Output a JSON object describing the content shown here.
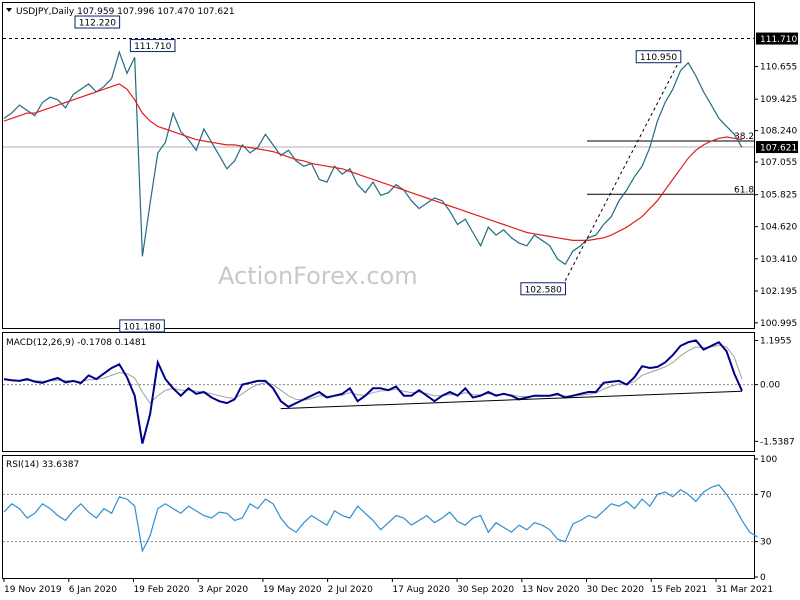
{
  "chart_data": {
    "type": "line",
    "symbol": "USDJPY",
    "timeframe": "Daily",
    "title_line": "USDJPY,Daily  107.959 107.996 107.470 107.621",
    "ohlc": {
      "open": 107.959,
      "high": 107.996,
      "low": 107.47,
      "close": 107.621
    },
    "watermark": "ActionForex.com",
    "x_ticks": [
      "19 Nov 2019",
      "6 Jan 2020",
      "19 Feb 2020",
      "3 Apr 2020",
      "19 May 2020",
      "2 Jul 2020",
      "17 Aug 2020",
      "30 Sep 2020",
      "13 Nov 2020",
      "30 Dec 2020",
      "15 Feb 2021",
      "31 Mar 2021"
    ],
    "colors": {
      "price": "#1f6b82",
      "ma": "#e02020",
      "macd": "#00008b",
      "signal": "#a0a0a0",
      "rsi": "#2e8fd0",
      "accent": "#0a246a"
    },
    "price_panel": {
      "y_ticks": [
        110.655,
        109.425,
        108.24,
        107.055,
        105.825,
        104.62,
        103.41,
        102.195,
        100.995
      ],
      "ylim": [
        100.8,
        113.05
      ],
      "current_price": 107.621,
      "resistance_level": 111.71,
      "annotations": [
        {
          "label": "112.220",
          "value": 112.22,
          "index": 15
        },
        {
          "label": "111.710",
          "value": 111.71,
          "index": 17
        },
        {
          "label": "101.180",
          "value": 101.18,
          "index": 19
        },
        {
          "label": "110.950",
          "value": 110.95,
          "index": 88
        },
        {
          "label": "102.580",
          "value": 102.58,
          "index": 73
        }
      ],
      "fib_levels": [
        {
          "label": "38.2",
          "value": 107.85
        },
        {
          "label": "61.8",
          "value": 105.84
        }
      ],
      "series": [
        {
          "name": "Close",
          "values": [
            108.7,
            108.9,
            109.2,
            109.0,
            108.8,
            109.3,
            109.5,
            109.4,
            109.1,
            109.6,
            109.8,
            110.0,
            109.7,
            109.9,
            110.2,
            111.2,
            110.4,
            111.0,
            103.5,
            105.5,
            107.4,
            107.8,
            108.9,
            108.2,
            107.9,
            107.5,
            108.3,
            107.8,
            107.3,
            106.8,
            107.1,
            107.7,
            107.4,
            107.6,
            108.1,
            107.7,
            107.3,
            107.5,
            107.1,
            106.9,
            107.0,
            106.4,
            106.3,
            106.9,
            106.6,
            106.8,
            106.2,
            105.9,
            106.3,
            105.8,
            105.9,
            106.2,
            106.0,
            105.6,
            105.3,
            105.5,
            105.7,
            105.6,
            105.2,
            104.7,
            104.9,
            104.4,
            103.9,
            104.6,
            104.3,
            104.5,
            104.2,
            104.0,
            103.9,
            104.3,
            104.1,
            103.9,
            103.4,
            103.2,
            103.7,
            103.9,
            104.2,
            104.3,
            104.7,
            105.0,
            105.6,
            106.0,
            106.5,
            106.9,
            107.6,
            108.6,
            109.3,
            109.8,
            110.5,
            110.8,
            110.3,
            109.7,
            109.2,
            108.7,
            108.4,
            108.1,
            107.6
          ]
        },
        {
          "name": "MA",
          "values": [
            108.6,
            108.7,
            108.8,
            108.9,
            108.9,
            109.0,
            109.1,
            109.2,
            109.3,
            109.4,
            109.5,
            109.6,
            109.7,
            109.8,
            109.9,
            110.0,
            109.8,
            109.4,
            108.9,
            108.6,
            108.4,
            108.3,
            108.2,
            108.1,
            108.0,
            107.9,
            107.85,
            107.8,
            107.75,
            107.7,
            107.7,
            107.65,
            107.6,
            107.55,
            107.5,
            107.45,
            107.35,
            107.25,
            107.15,
            107.1,
            107.0,
            106.95,
            106.9,
            106.85,
            106.8,
            106.7,
            106.6,
            106.5,
            106.4,
            106.3,
            106.2,
            106.1,
            106.0,
            105.9,
            105.8,
            105.7,
            105.6,
            105.5,
            105.4,
            105.3,
            105.2,
            105.1,
            105.0,
            104.9,
            104.8,
            104.7,
            104.6,
            104.5,
            104.4,
            104.35,
            104.3,
            104.25,
            104.2,
            104.15,
            104.1,
            104.1,
            104.1,
            104.15,
            104.2,
            104.3,
            104.45,
            104.6,
            104.8,
            105.0,
            105.3,
            105.6,
            106.0,
            106.4,
            106.8,
            107.2,
            107.5,
            107.7,
            107.85,
            107.95,
            108.0,
            107.95,
            107.9
          ]
        }
      ]
    },
    "macd_panel": {
      "label": "MACD(12,26,9) -0.1708 0.1481",
      "y_ticks": [
        "1.1955",
        "0.00",
        "-1.5387"
      ],
      "ylim": [
        -1.8,
        1.4
      ],
      "zero_level": 0.0,
      "trendline": [
        {
          "index": 36,
          "value": -0.65
        },
        {
          "index": 96,
          "value": -0.18
        }
      ],
      "series": [
        {
          "name": "MACD",
          "values": [
            0.15,
            0.12,
            0.1,
            0.15,
            0.08,
            0.05,
            0.12,
            0.18,
            0.06,
            0.1,
            0.04,
            0.25,
            0.15,
            0.3,
            0.45,
            0.55,
            0.2,
            -0.3,
            -1.6,
            -0.8,
            0.6,
            0.15,
            -0.1,
            -0.3,
            -0.1,
            -0.25,
            -0.2,
            -0.35,
            -0.45,
            -0.5,
            -0.4,
            0.0,
            0.05,
            0.1,
            0.1,
            -0.1,
            -0.45,
            -0.6,
            -0.5,
            -0.4,
            -0.3,
            -0.2,
            -0.35,
            -0.3,
            -0.25,
            -0.1,
            -0.45,
            -0.3,
            -0.1,
            -0.1,
            -0.15,
            -0.05,
            -0.3,
            -0.3,
            -0.15,
            -0.3,
            -0.45,
            -0.3,
            -0.2,
            -0.3,
            -0.1,
            -0.35,
            -0.3,
            -0.2,
            -0.3,
            -0.25,
            -0.3,
            -0.4,
            -0.35,
            -0.3,
            -0.3,
            -0.3,
            -0.25,
            -0.35,
            -0.3,
            -0.25,
            -0.2,
            -0.2,
            0.05,
            0.08,
            0.1,
            0.0,
            0.2,
            0.5,
            0.45,
            0.48,
            0.6,
            0.8,
            1.05,
            1.15,
            1.2,
            0.95,
            1.05,
            1.15,
            0.9,
            0.3,
            -0.17
          ]
        },
        {
          "name": "Signal",
          "values": [
            0.13,
            0.12,
            0.11,
            0.12,
            0.11,
            0.09,
            0.1,
            0.12,
            0.11,
            0.1,
            0.08,
            0.13,
            0.14,
            0.18,
            0.25,
            0.33,
            0.3,
            0.18,
            -0.2,
            -0.5,
            -0.3,
            -0.15,
            -0.1,
            -0.15,
            -0.15,
            -0.18,
            -0.2,
            -0.25,
            -0.3,
            -0.35,
            -0.38,
            -0.25,
            -0.1,
            0.0,
            0.05,
            0.0,
            -0.15,
            -0.3,
            -0.4,
            -0.42,
            -0.38,
            -0.3,
            -0.32,
            -0.31,
            -0.29,
            -0.22,
            -0.28,
            -0.29,
            -0.22,
            -0.17,
            -0.16,
            -0.12,
            -0.18,
            -0.22,
            -0.2,
            -0.24,
            -0.3,
            -0.3,
            -0.27,
            -0.28,
            -0.22,
            -0.27,
            -0.28,
            -0.25,
            -0.27,
            -0.26,
            -0.28,
            -0.32,
            -0.33,
            -0.32,
            -0.31,
            -0.31,
            -0.29,
            -0.31,
            -0.31,
            -0.29,
            -0.26,
            -0.23,
            -0.12,
            -0.04,
            0.02,
            0.01,
            0.08,
            0.25,
            0.33,
            0.4,
            0.48,
            0.6,
            0.78,
            0.92,
            1.02,
            1.0,
            1.02,
            1.07,
            1.02,
            0.75,
            0.15
          ]
        }
      ]
    },
    "rsi_panel": {
      "label": "RSI(14) 33.6387",
      "y_ticks": [
        "100",
        "70",
        "30",
        "0"
      ],
      "ylim": [
        0,
        100
      ],
      "levels": [
        70,
        30
      ],
      "series": [
        {
          "name": "RSI",
          "values": [
            55,
            62,
            58,
            50,
            54,
            62,
            58,
            52,
            48,
            56,
            62,
            55,
            50,
            58,
            54,
            68,
            66,
            60,
            22,
            35,
            58,
            62,
            58,
            54,
            60,
            56,
            52,
            50,
            55,
            54,
            48,
            50,
            62,
            58,
            66,
            62,
            50,
            42,
            38,
            46,
            52,
            48,
            44,
            56,
            52,
            50,
            60,
            54,
            48,
            40,
            46,
            52,
            50,
            44,
            48,
            52,
            46,
            50,
            55,
            47,
            44,
            50,
            52,
            38,
            46,
            42,
            38,
            44,
            40,
            46,
            44,
            40,
            32,
            30,
            45,
            48,
            52,
            50,
            56,
            62,
            60,
            64,
            58,
            66,
            60,
            70,
            72,
            68,
            74,
            70,
            64,
            72,
            76,
            78,
            70,
            60,
            48,
            38,
            34
          ]
        }
      ]
    }
  }
}
